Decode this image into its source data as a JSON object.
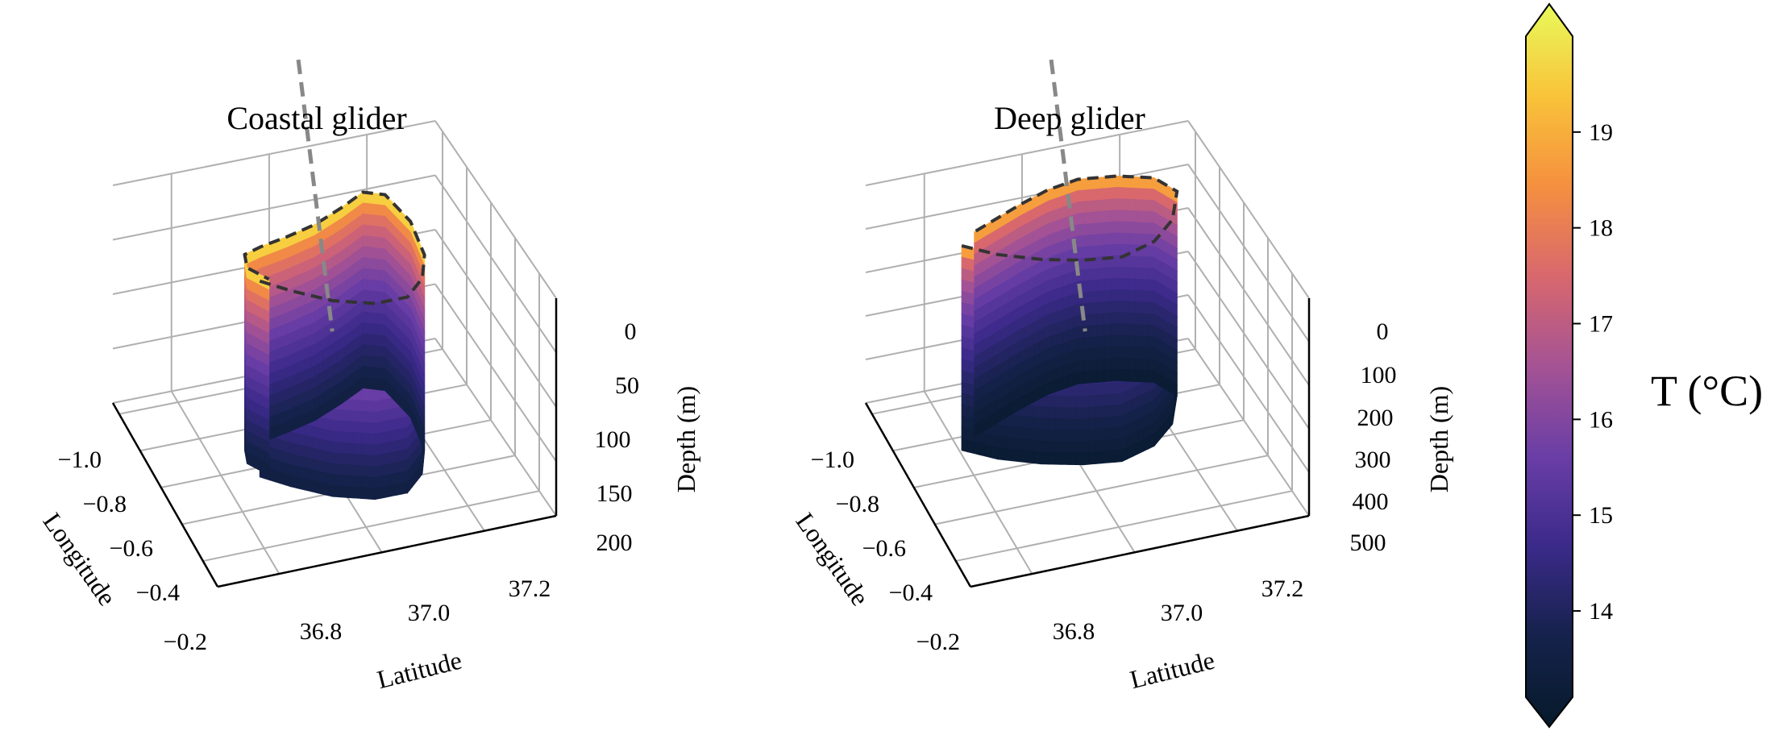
{
  "figure": {
    "colorbar": {
      "label": "T (°C)",
      "ticks": [
        14,
        15,
        16,
        17,
        18,
        19
      ],
      "range": [
        13.1,
        20.0
      ],
      "colormap": "thermal",
      "colors": [
        "#061a2b",
        "#15224b",
        "#3b2a8a",
        "#6a3ea6",
        "#a55394",
        "#d9686d",
        "#f5903f",
        "#f9c43a",
        "#e8fa5b"
      ]
    }
  },
  "chart_data": [
    {
      "type": "scatter3d",
      "title": "Coastal glider",
      "xlabel": "Latitude",
      "ylabel": "Longitude",
      "zlabel": "Depth (m)",
      "x_ticks": [
        "36.8",
        "37.0",
        "37.2"
      ],
      "y_ticks": [
        "−1.0",
        "−0.8",
        "−0.6",
        "−0.4",
        "−0.2"
      ],
      "z_ticks": [
        "0",
        "50",
        "100",
        "150",
        "200"
      ],
      "xlim": [
        36.6,
        37.3
      ],
      "ylim": [
        -1.1,
        -0.2
      ],
      "zlim": [
        200,
        0
      ],
      "track": {
        "lat": [
          36.78,
          36.83,
          36.9,
          36.98,
          37.05,
          37.1,
          37.13,
          37.14,
          37.12,
          37.08,
          37.02,
          36.95,
          36.88,
          36.82,
          36.78,
          36.77,
          36.8
        ],
        "lon": [
          -0.75,
          -0.82,
          -0.9,
          -0.95,
          -0.95,
          -0.88,
          -0.78,
          -0.62,
          -0.48,
          -0.45,
          -0.5,
          -0.55,
          -0.58,
          -0.6,
          -0.62,
          -0.68,
          -0.75
        ]
      },
      "max_depth": 180,
      "surface_temperature": 19.3,
      "bottom_temperature": 13.6,
      "reference_line": {
        "style": "dashed",
        "color": "#888888"
      }
    },
    {
      "type": "scatter3d",
      "title": "Deep glider",
      "xlabel": "Latitude",
      "ylabel": "Longitude",
      "zlabel": "Depth (m)",
      "x_ticks": [
        "36.8",
        "37.0",
        "37.2"
      ],
      "y_ticks": [
        "−1.0",
        "−0.8",
        "−0.6",
        "−0.4",
        "−0.2"
      ],
      "z_ticks": [
        "0",
        "100",
        "200",
        "300",
        "400",
        "500"
      ],
      "xlim": [
        36.6,
        37.3
      ],
      "ylim": [
        -1.1,
        -0.2
      ],
      "zlim": [
        500,
        0
      ],
      "track": {
        "lat": [
          36.72,
          36.78,
          36.86,
          36.94,
          37.02,
          37.1,
          37.16,
          37.2,
          37.17,
          37.1,
          37.02,
          36.95,
          36.88,
          36.82,
          36.76
        ],
        "lon": [
          -0.55,
          -0.62,
          -0.68,
          -0.72,
          -0.74,
          -0.7,
          -0.62,
          -0.5,
          -0.42,
          -0.38,
          -0.36,
          -0.38,
          -0.42,
          -0.46,
          -0.5
        ]
      },
      "max_depth": 470,
      "surface_temperature": 18.5,
      "bottom_temperature": 13.2,
      "reference_line": {
        "style": "dashed",
        "color": "#888888"
      }
    }
  ]
}
